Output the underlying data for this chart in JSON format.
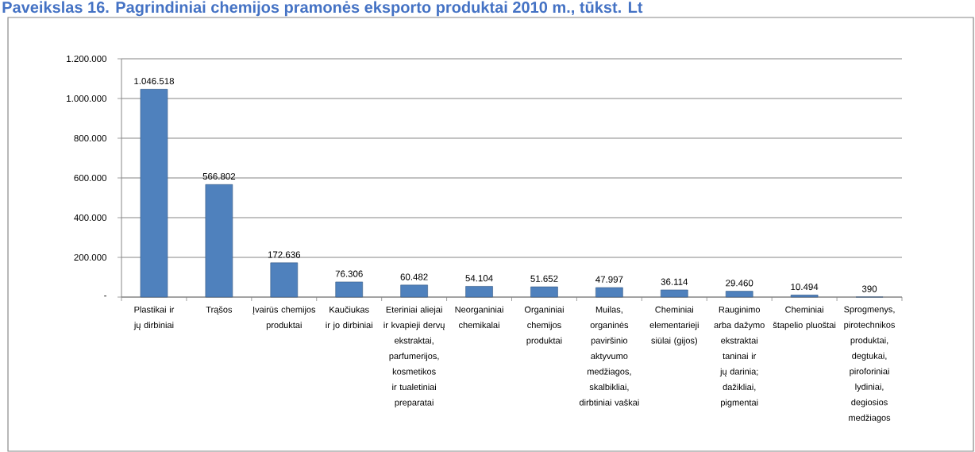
{
  "chart_data": {
    "type": "bar",
    "title": "Paveikslas 16. Pagrindiniai chemijos pramonės eksporto produktai 2010 m., tūkst. Lt",
    "categories": [
      "Plastikai ir jų dirbiniai",
      "Trąšos",
      "Įvairūs chemijos produktai",
      "Kaučiukas ir jo dirbiniai",
      "Eteriniai aliejai ir kvapieji dervų ekstraktai, parfumerijos, kosmetikos ir tualetiniai preparatai",
      "Neorganiniai chemikalai",
      "Organiniai chemijos produktai",
      "Muilas, organinės paviršinio aktyvumo medžiagos, skalbikliai, dirbtiniai vaškai",
      "Cheminiai elementarieji siūlai (gijos)",
      "Rauginimo arba dažymo ekstraktai taninai ir jų darinia; dažikliai, pigmentai",
      "Cheminiai štapelio pluoštai",
      "Sprogmenys, pirotechnikos produktai, degtukai, piroforiniai lydiniai, degiosios medžiagos"
    ],
    "values": [
      1046518,
      566802,
      172636,
      76306,
      60482,
      54104,
      51652,
      47997,
      36114,
      29460,
      10494,
      390
    ],
    "value_labels": [
      "1.046.518",
      "566.802",
      "172.636",
      "76.306",
      "60.482",
      "54.104",
      "51.652",
      "47.997",
      "36.114",
      "29.460",
      "10.494",
      "390"
    ],
    "color": "#4f81bd",
    "ylim": [
      0,
      1200000
    ],
    "yticks": [
      {
        "value": 0,
        "label": "-"
      },
      {
        "value": 200000,
        "label": "200.000"
      },
      {
        "value": 400000,
        "label": "400.000"
      },
      {
        "value": 600000,
        "label": "600.000"
      },
      {
        "value": 800000,
        "label": "800.000"
      },
      {
        "value": 1000000,
        "label": "1.000.000"
      },
      {
        "value": 1200000,
        "label": "1.200.000"
      }
    ],
    "grid": "y"
  }
}
